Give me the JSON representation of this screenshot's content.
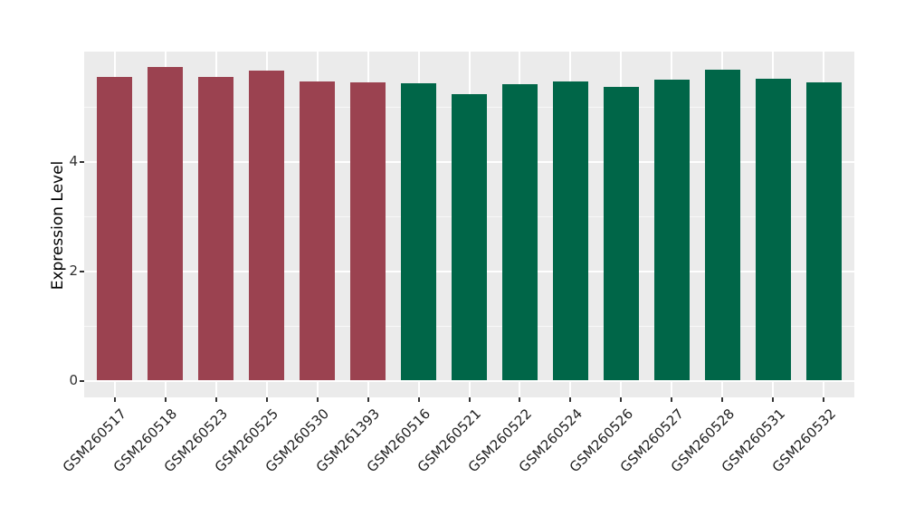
{
  "chart_data": {
    "type": "bar",
    "title": "",
    "xlabel": "",
    "ylabel": "Expression Level",
    "categories": [
      "GSM260517",
      "GSM260518",
      "GSM260523",
      "GSM260525",
      "GSM260530",
      "GSM261393",
      "GSM260516",
      "GSM260521",
      "GSM260522",
      "GSM260524",
      "GSM260526",
      "GSM260527",
      "GSM260528",
      "GSM260531",
      "GSM260532"
    ],
    "values": [
      5.55,
      5.73,
      5.54,
      5.66,
      5.46,
      5.44,
      5.43,
      5.23,
      5.41,
      5.47,
      5.36,
      5.49,
      5.67,
      5.52,
      5.45
    ],
    "bar_colors": [
      "#9B4250",
      "#9B4250",
      "#9B4250",
      "#9B4250",
      "#9B4250",
      "#9B4250",
      "#006648",
      "#006648",
      "#006648",
      "#006648",
      "#006648",
      "#006648",
      "#006648",
      "#006648",
      "#006648"
    ],
    "group_color_maroon": "#9B4250",
    "group_color_green": "#006648",
    "yticks": [
      0,
      2,
      4
    ],
    "minor_gridlines": [
      1,
      3,
      5
    ],
    "ylim": [
      -0.3,
      6.02
    ],
    "x_tick_rotation_deg": 45,
    "legend_position": "none",
    "panel_background": "#EBEBEB",
    "gridline_color": "#FFFFFF",
    "grid": true
  }
}
